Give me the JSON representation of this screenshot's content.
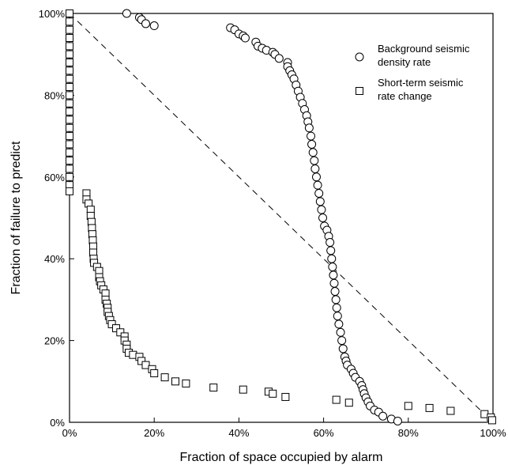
{
  "chart_data": {
    "type": "scatter",
    "title": "",
    "xlabel": "Fraction of space occupied by alarm",
    "ylabel": "Fraction of failure to predict",
    "xlim": [
      0,
      100
    ],
    "ylim": [
      0,
      100
    ],
    "x_ticks": [
      0,
      20,
      40,
      60,
      80,
      100
    ],
    "x_tick_labels": [
      "0%",
      "20%",
      "40%",
      "60%",
      "80%",
      "100%"
    ],
    "y_ticks": [
      0,
      20,
      40,
      60,
      80,
      100
    ],
    "y_tick_labels": [
      "0%",
      "20%",
      "40%",
      "60%",
      "80%",
      "100%"
    ],
    "grid": false,
    "legend_position": "top-right",
    "reference_line": {
      "style": "dashed",
      "points": [
        [
          0,
          100
        ],
        [
          100,
          0
        ]
      ]
    },
    "series": [
      {
        "name": "Background seismic density rate",
        "legend_lines": [
          "Background seismic",
          "density rate"
        ],
        "marker": "circle",
        "points": [
          [
            13.5,
            100
          ],
          [
            16.5,
            99
          ],
          [
            17,
            98.5
          ],
          [
            18,
            97.5
          ],
          [
            20,
            97
          ],
          [
            38,
            96.5
          ],
          [
            39,
            96
          ],
          [
            40,
            95
          ],
          [
            41,
            94.5
          ],
          [
            41.5,
            94
          ],
          [
            44,
            93
          ],
          [
            44.5,
            92
          ],
          [
            45.5,
            91.5
          ],
          [
            46.5,
            91
          ],
          [
            48,
            90.5
          ],
          [
            48.5,
            90
          ],
          [
            49.5,
            89
          ],
          [
            51.5,
            88
          ],
          [
            51.5,
            87
          ],
          [
            52,
            86
          ],
          [
            52.5,
            85
          ],
          [
            53,
            84
          ],
          [
            53.5,
            82.5
          ],
          [
            54,
            81
          ],
          [
            54.5,
            79.5
          ],
          [
            55,
            78
          ],
          [
            55.5,
            76.5
          ],
          [
            56,
            75
          ],
          [
            56.3,
            73.5
          ],
          [
            56.6,
            72
          ],
          [
            57,
            70
          ],
          [
            57.2,
            68
          ],
          [
            57.5,
            66
          ],
          [
            57.8,
            64
          ],
          [
            58,
            62
          ],
          [
            58.3,
            60
          ],
          [
            58.6,
            58
          ],
          [
            58.9,
            56
          ],
          [
            59.2,
            54
          ],
          [
            59.5,
            52
          ],
          [
            59.8,
            50
          ],
          [
            60.2,
            48
          ],
          [
            60.8,
            47
          ],
          [
            61.2,
            45.5
          ],
          [
            61.5,
            44
          ],
          [
            61.7,
            42
          ],
          [
            61.9,
            40
          ],
          [
            62.1,
            38
          ],
          [
            62.3,
            36
          ],
          [
            62.5,
            34
          ],
          [
            62.7,
            32
          ],
          [
            62.9,
            30
          ],
          [
            63.1,
            28
          ],
          [
            63.3,
            26
          ],
          [
            63.6,
            24
          ],
          [
            64,
            22
          ],
          [
            64.3,
            20
          ],
          [
            64.6,
            18
          ],
          [
            65,
            16
          ],
          [
            65.3,
            15
          ],
          [
            65.6,
            14
          ],
          [
            66.5,
            13
          ],
          [
            67,
            12
          ],
          [
            67.5,
            11
          ],
          [
            68.5,
            10
          ],
          [
            69,
            9
          ],
          [
            69.3,
            8
          ],
          [
            69.6,
            7
          ],
          [
            70,
            6
          ],
          [
            70.5,
            5
          ],
          [
            71,
            4
          ],
          [
            72,
            3
          ],
          [
            73,
            2.5
          ],
          [
            74,
            1.5
          ],
          [
            76,
            0.8
          ],
          [
            77.5,
            0.3
          ]
        ]
      },
      {
        "name": "Short-term seismic rate change",
        "legend_lines": [
          "Short-term seismic",
          "rate change"
        ],
        "marker": "square",
        "points": [
          [
            0,
            100
          ],
          [
            0,
            98
          ],
          [
            0,
            96
          ],
          [
            0,
            94
          ],
          [
            0,
            92
          ],
          [
            0,
            90
          ],
          [
            0,
            88
          ],
          [
            0,
            86
          ],
          [
            0,
            84
          ],
          [
            0,
            82
          ],
          [
            0,
            80
          ],
          [
            0,
            78
          ],
          [
            0,
            76
          ],
          [
            0,
            74
          ],
          [
            0,
            72
          ],
          [
            0,
            70
          ],
          [
            0,
            68
          ],
          [
            0,
            66
          ],
          [
            0,
            64
          ],
          [
            0,
            62
          ],
          [
            0,
            60
          ],
          [
            0,
            58
          ],
          [
            0,
            56.5
          ],
          [
            4,
            56
          ],
          [
            4,
            54.5
          ],
          [
            4.5,
            53.5
          ],
          [
            5,
            52
          ],
          [
            5,
            50.5
          ],
          [
            5.2,
            49
          ],
          [
            5.3,
            47.5
          ],
          [
            5.4,
            46
          ],
          [
            5.5,
            44.5
          ],
          [
            5.6,
            43
          ],
          [
            5.6,
            41.5
          ],
          [
            5.7,
            40
          ],
          [
            5.8,
            39
          ],
          [
            6.5,
            38
          ],
          [
            7,
            37
          ],
          [
            7,
            35.5
          ],
          [
            7.2,
            34.5
          ],
          [
            7.5,
            33.5
          ],
          [
            8,
            32.5
          ],
          [
            8.5,
            31.5
          ],
          [
            8.5,
            30
          ],
          [
            8.8,
            29
          ],
          [
            9,
            28
          ],
          [
            9,
            27
          ],
          [
            9.3,
            26
          ],
          [
            9.6,
            25
          ],
          [
            10,
            24
          ],
          [
            11,
            23
          ],
          [
            12,
            22
          ],
          [
            13,
            21
          ],
          [
            13,
            20
          ],
          [
            13.5,
            19
          ],
          [
            13.5,
            18
          ],
          [
            14,
            17
          ],
          [
            15,
            16.5
          ],
          [
            16.5,
            16
          ],
          [
            17,
            15
          ],
          [
            18,
            14
          ],
          [
            19.5,
            13
          ],
          [
            20,
            12
          ],
          [
            22.5,
            11
          ],
          [
            25,
            10
          ],
          [
            27.5,
            9.5
          ],
          [
            34,
            8.5
          ],
          [
            41,
            8
          ],
          [
            47,
            7.5
          ],
          [
            48,
            7
          ],
          [
            51,
            6.2
          ],
          [
            63,
            5.5
          ],
          [
            66,
            4.8
          ],
          [
            80,
            4
          ],
          [
            85,
            3.5
          ],
          [
            90,
            2.8
          ],
          [
            98,
            2
          ],
          [
            99.5,
            1.2
          ],
          [
            99.8,
            0.5
          ]
        ]
      }
    ]
  }
}
